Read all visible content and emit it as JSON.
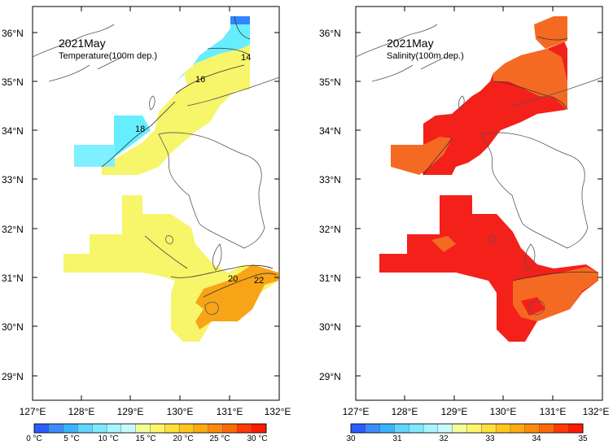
{
  "panels": [
    {
      "title": "2021May",
      "subtitle": "Temperature(100m dep.)",
      "lat_labels": [
        "36°N",
        "35°N",
        "34°N",
        "33°N",
        "32°N",
        "31°N",
        "30°N",
        "29°N"
      ],
      "lon_labels": [
        "127°E",
        "128°E",
        "129°E",
        "130°E",
        "131°E",
        "132°E"
      ],
      "contour_labels": [
        "14",
        "16",
        "18",
        "20",
        "22"
      ],
      "colorbar_labels": [
        "0 °C",
        "5 °C",
        "10 °C",
        "15 °C",
        "20 °C",
        "25 °C",
        "30 °C"
      ],
      "colorbar_colors": [
        "#2a5cff",
        "#3a8cff",
        "#3bb4ff",
        "#5fd6ff",
        "#7fe9ff",
        "#a6f5ff",
        "#c8fbff",
        "#f2ff9a",
        "#fff56a",
        "#ffe03a",
        "#ffc61e",
        "#ffaa12",
        "#ff8a0a",
        "#ff6a08",
        "#ff3a04",
        "#ff1a00"
      ]
    },
    {
      "title": "2021May",
      "subtitle": "Salinity(100m dep.)",
      "lat_labels": [
        "36°N",
        "35°N",
        "34°N",
        "33°N",
        "32°N",
        "31°N",
        "30°N",
        "29°N"
      ],
      "lon_labels": [
        "127°E",
        "128°E",
        "129°E",
        "130°E",
        "131°E",
        "132°E"
      ],
      "colorbar_labels": [
        "30",
        "31",
        "32",
        "33",
        "34",
        "35"
      ],
      "colorbar_colors": [
        "#2a5cff",
        "#3a8cff",
        "#3bb4ff",
        "#5fd6ff",
        "#7fe9ff",
        "#a6f5ff",
        "#c8fbff",
        "#f2ff9a",
        "#fff56a",
        "#ffe03a",
        "#ffc61e",
        "#ffaa12",
        "#ff8a0a",
        "#ff6a08",
        "#ff3a04",
        "#ff1a00"
      ]
    }
  ],
  "colors": {
    "cold": "#66eeff",
    "yellow": "#f7f56a",
    "orange": "#f7a416",
    "salt_red": "#f4201a",
    "salt_orange": "#f46a22"
  }
}
